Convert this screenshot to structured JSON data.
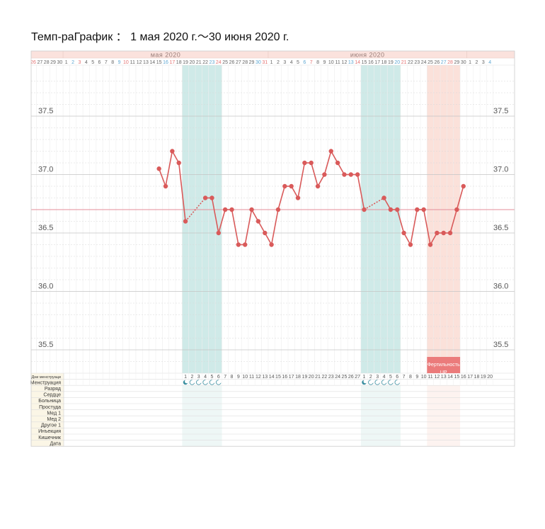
{
  "title": "Темп-раГрафик ： 1 мая 2020 г.～30 июня 2020 г.",
  "months": [
    {
      "label": "мая 2020"
    },
    {
      "label": "июня 2020"
    }
  ],
  "date_labels": [
    "26",
    "27",
    "28",
    "29",
    "30",
    "1",
    "2",
    "3",
    "4",
    "5",
    "6",
    "7",
    "8",
    "9",
    "10",
    "11",
    "12",
    "13",
    "14",
    "15",
    "16",
    "17",
    "18",
    "19",
    "20",
    "21",
    "22",
    "23",
    "24",
    "25",
    "26",
    "27",
    "28",
    "29",
    "30",
    "31",
    "1",
    "2",
    "3",
    "4",
    "5",
    "6",
    "7",
    "8",
    "9",
    "10",
    "11",
    "12",
    "13",
    "14",
    "15",
    "16",
    "17",
    "18",
    "19",
    "20",
    "21",
    "22",
    "23",
    "24",
    "25",
    "26",
    "27",
    "28",
    "29",
    "30",
    "1",
    "2",
    "3",
    "4"
  ],
  "cycle_day_labels": [
    "1",
    "2",
    "3",
    "4",
    "5",
    "6",
    "7",
    "8",
    "9",
    "10",
    "11",
    "12",
    "13",
    "14",
    "15",
    "16",
    "17",
    "18",
    "19",
    "20",
    "21",
    "22",
    "23",
    "24",
    "25",
    "26",
    "27",
    "1",
    "2",
    "3",
    "4",
    "5",
    "6",
    "7",
    "8",
    "9",
    "10",
    "11",
    "12",
    "13",
    "14",
    "15",
    "16",
    "17",
    "18",
    "19",
    "20"
  ],
  "row_labels": [
    "Дни менструаци",
    "Менструация",
    "Разряд",
    "Сердце",
    "Больница",
    "Простуда",
    "Мед 1",
    "Мед 2",
    "Другое 1",
    "Инъекция",
    "Кишечник",
    "Дата"
  ],
  "fertility_label": "Фертильность UP",
  "colors": {
    "line": "#d95a5a",
    "baseline": "#e48d9a",
    "menstruation_band": "#cfeae8",
    "fertility_band": "#fbe1da",
    "fertility_box": "#eb7b7b",
    "header_bg": "#fbe2dd",
    "sunday": "#e57373",
    "saturday": "#5fa8d3"
  },
  "icons": {
    "moon": "crescent-moon-icon"
  },
  "chart_data": {
    "type": "line",
    "title": "Темп-раГрафик ： 1 мая 2020 г.～30 июня 2020 г.",
    "x_range": [
      "2020-04-26",
      "2020-07-04"
    ],
    "ylim": [
      35.3,
      37.9
    ],
    "y_ticks": [
      35.5,
      36.0,
      36.5,
      37.0,
      37.5
    ],
    "y_tick_labels": [
      "35.5",
      "36.0",
      "36.5",
      "37.0",
      "37.5"
    ],
    "baseline": 36.7,
    "grid": true,
    "series": [
      {
        "x": [
          "2020-05-15",
          "2020-05-16",
          "2020-05-17",
          "2020-05-18",
          "2020-05-19",
          "2020-05-22",
          "2020-05-23",
          "2020-05-24",
          "2020-05-25",
          "2020-05-26",
          "2020-05-27",
          "2020-05-28",
          "2020-05-29",
          "2020-05-30",
          "2020-05-31",
          "2020-06-01",
          "2020-06-02",
          "2020-06-03",
          "2020-06-04",
          "2020-06-05",
          "2020-06-06",
          "2020-06-07",
          "2020-06-08",
          "2020-06-09",
          "2020-06-10",
          "2020-06-11",
          "2020-06-12",
          "2020-06-13",
          "2020-06-14",
          "2020-06-15",
          "2020-06-18",
          "2020-06-19",
          "2020-06-20",
          "2020-06-21",
          "2020-06-22",
          "2020-06-23",
          "2020-06-24",
          "2020-06-25",
          "2020-06-26",
          "2020-06-27",
          "2020-06-28",
          "2020-06-29",
          "2020-06-30"
        ],
        "y": [
          37.05,
          36.9,
          37.2,
          37.1,
          36.6,
          36.8,
          36.8,
          36.5,
          36.7,
          36.7,
          36.4,
          36.4,
          36.7,
          36.6,
          36.5,
          36.4,
          36.7,
          36.9,
          36.9,
          36.8,
          37.1,
          37.1,
          36.9,
          37.0,
          37.2,
          37.1,
          37.0,
          37.0,
          37.0,
          36.7,
          36.8,
          36.7,
          36.7,
          36.5,
          36.4,
          36.7,
          36.7,
          36.4,
          36.5,
          36.5,
          36.5,
          36.7,
          36.9
        ]
      }
    ],
    "dotted_gaps": [
      [
        "2020-05-19",
        "2020-05-22"
      ],
      [
        "2020-06-15",
        "2020-06-18"
      ]
    ],
    "menstruation_periods": [
      [
        "2020-05-19",
        "2020-05-24"
      ],
      [
        "2020-06-15",
        "2020-06-20"
      ]
    ],
    "fertility_period": [
      "2020-06-25",
      "2020-06-29"
    ]
  }
}
